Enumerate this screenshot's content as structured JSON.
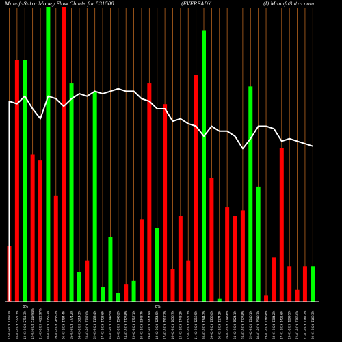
{
  "title": {
    "left": "MunafaSutra Money Flow Charts for 531508",
    "center": "(EVEREADY",
    "right": "(I) MunafaSutra.com"
  },
  "colors": {
    "background": "#000000",
    "gridline": "#b8651f",
    "up_bar": "#00ff00",
    "down_bar": "#ff0000",
    "price_line": "#ffffff",
    "baseline": "#ffffff"
  },
  "chart_data": {
    "type": "bar",
    "ylim": [
      0,
      100
    ],
    "price_ylim": [
      0,
      100
    ],
    "categories": [
      "17-03-2026 1749.1%",
      "16-03-2026 5221.3%",
      "13-03-2026 2711.3%",
      "12-03-2026 5149.94%",
      "11-03-2026 4622.97%",
      "10-03-2026 1155.3%",
      "09-03-2026 2658.2%",
      "06-03-2026 1794.4%",
      "05-03-2026 7774.2%",
      "04-03-2026 3614.3%",
      "03-03-2026 1207.0%",
      "02-03-2026 1133.4%",
      "27-02-2026 1723.6%",
      "26-02-2026 1798.5%",
      "25-02-2026 1543.2%",
      "24-02-2026 1723.8%",
      "23-02-2026 1717.1%",
      "20-02-2026 5348.7%",
      "19-02-2026 1474.9%",
      "18-02-2026 1254.5%",
      "17-02-2026 1517.2%",
      "16-02-2026 1056.7%",
      "13-02-2026 1743.2%",
      "12-02-2026 6577.3%",
      "11-02-2026 1212.5%",
      "10-02-2026 1344.2%",
      "09-02-2026 1356.0%",
      "06-02-2026 1174.2%",
      "05-02-2026 1745.6%",
      "04-02-2026 1524.1%",
      "03-02-2026 1123.8%",
      "02-02-2026 1540.1%",
      "30-01-2026 1598.3%",
      "29-01-2026 1366.8%",
      "28-01-2026 1384.2%",
      "27-01-2026 1421.6%",
      "23-01-2026 1299.5%",
      "22-01-2026 1265.0%",
      "21-01-2026 1167.2%",
      "20-01-2026 1160.3%"
    ],
    "values": [
      19,
      82,
      82,
      50,
      48,
      100,
      36,
      100,
      74,
      10,
      14,
      71,
      5,
      22,
      3,
      6,
      7,
      28,
      74,
      25,
      67,
      11,
      29,
      14,
      77,
      92,
      42,
      1,
      32,
      29,
      31,
      73,
      39,
      2,
      15,
      52,
      12,
      4,
      12,
      12
    ],
    "directions": [
      "down",
      "down",
      "up",
      "down",
      "down",
      "up",
      "down",
      "down",
      "up",
      "up",
      "down",
      "up",
      "up",
      "up",
      "up",
      "down",
      "up",
      "down",
      "down",
      "up",
      "down",
      "down",
      "down",
      "down",
      "down",
      "up",
      "down",
      "up",
      "down",
      "down",
      "down",
      "up",
      "up",
      "down",
      "down",
      "down",
      "down",
      "down",
      "down",
      "up"
    ],
    "price": [
      80,
      79,
      82,
      77,
      73,
      82,
      81,
      78,
      81,
      83,
      82,
      84,
      83,
      84,
      85,
      84,
      84,
      81,
      80,
      77,
      77,
      72,
      73,
      71,
      70,
      66,
      70,
      68,
      68,
      66,
      61,
      65,
      70,
      70,
      69,
      64,
      65,
      64,
      63,
      62
    ],
    "markers": [
      {
        "index": 2,
        "text": "0%"
      },
      {
        "index": 19,
        "text": "0%"
      }
    ]
  }
}
